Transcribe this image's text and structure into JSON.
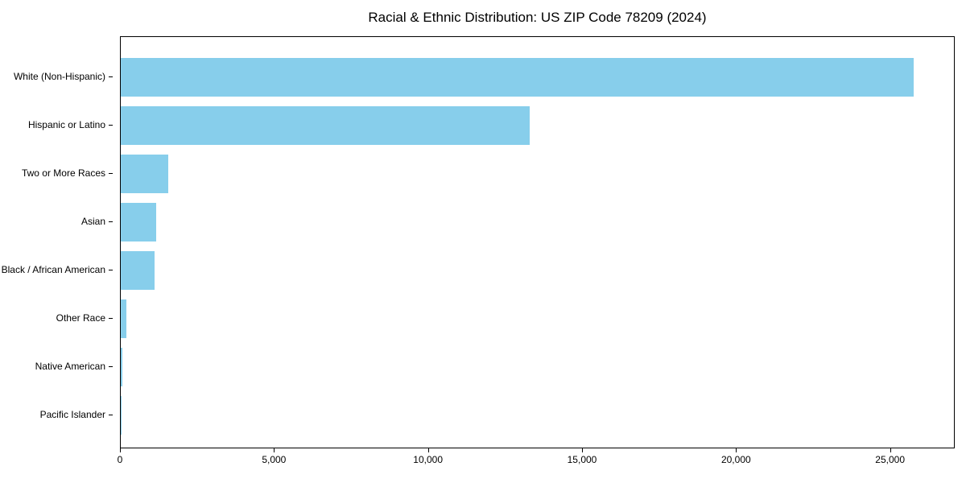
{
  "chart_data": {
    "type": "bar",
    "orientation": "horizontal",
    "title": "Racial & Ethnic Distribution: US ZIP Code 78209 (2024)",
    "categories": [
      "White (Non-Hispanic)",
      "Hispanic or Latino",
      "Two or More Races",
      "Asian",
      "Black / African American",
      "Other Race",
      "Native American",
      "Pacific Islander"
    ],
    "values": [
      25800,
      13300,
      1550,
      1140,
      1090,
      175,
      50,
      15
    ],
    "xlabel": "",
    "ylabel": "",
    "xlim": [
      0,
      27100
    ],
    "x_ticks": [
      0,
      5000,
      10000,
      15000,
      20000,
      25000
    ],
    "x_tick_labels": [
      "0",
      "5,000",
      "10,000",
      "15,000",
      "20,000",
      "25,000"
    ],
    "bar_color": "#87ceeb",
    "grid": false,
    "legend_position": "none",
    "plot_background": "#ffffff",
    "axis_color": "#000000"
  }
}
